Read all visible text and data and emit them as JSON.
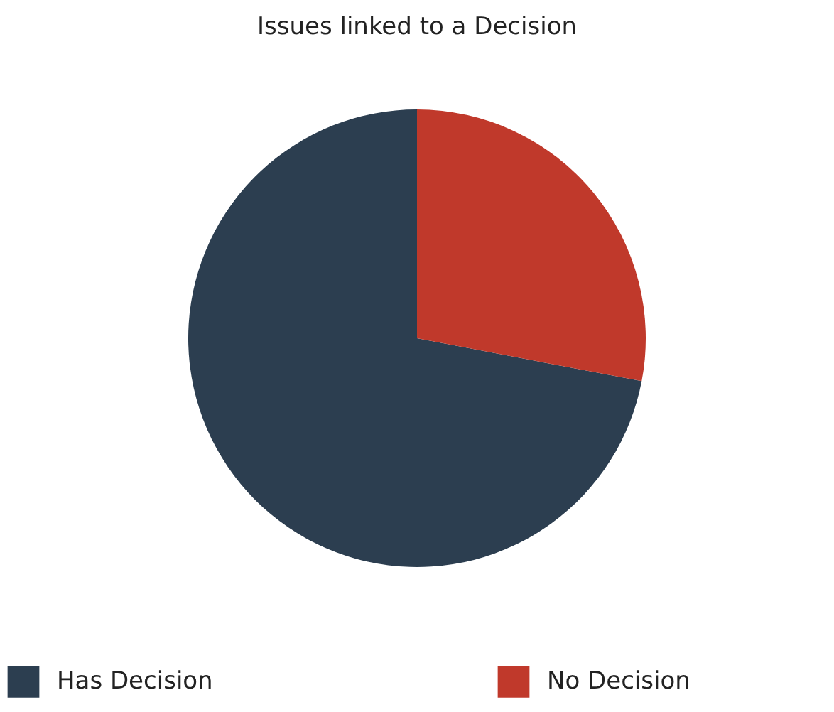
{
  "chart_data": {
    "type": "pie",
    "title": "Issues linked to a Decision",
    "categories": [
      "Has Decision",
      "No Decision"
    ],
    "values": [
      72,
      28
    ],
    "colors": [
      "#2c3e50",
      "#c0392b"
    ],
    "legend": "bottom"
  }
}
